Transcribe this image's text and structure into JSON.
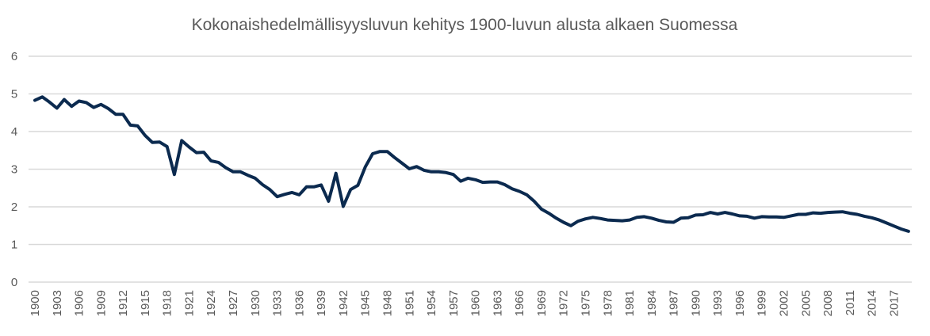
{
  "chart_data": {
    "type": "line",
    "title": "Kokonaishedelmällisyysluvun kehitys 1900-luvun alusta alkaen Suomessa",
    "xlabel": "",
    "ylabel": "",
    "ylim": [
      0,
      6
    ],
    "yticks": [
      "0",
      "1",
      "2",
      "3",
      "4",
      "5",
      "6"
    ],
    "xticks": [
      "1900",
      "1903",
      "1906",
      "1909",
      "1912",
      "1915",
      "1918",
      "1921",
      "1924",
      "1927",
      "1930",
      "1933",
      "1936",
      "1939",
      "1942",
      "1945",
      "1948",
      "1951",
      "1954",
      "1957",
      "1960",
      "1963",
      "1966",
      "1969",
      "1972",
      "1975",
      "1978",
      "1981",
      "1984",
      "1987",
      "1990",
      "1993",
      "1996",
      "1999",
      "2002",
      "2005",
      "2008",
      "2011",
      "2014",
      "2017"
    ],
    "grid": true,
    "legend": "none",
    "line_color": "#0b2a4f",
    "x_start": 1900,
    "values": [
      4.83,
      4.92,
      4.78,
      4.62,
      4.85,
      4.67,
      4.81,
      4.77,
      4.64,
      4.72,
      4.61,
      4.46,
      4.46,
      4.17,
      4.15,
      3.9,
      3.71,
      3.72,
      3.6,
      2.86,
      3.76,
      3.59,
      3.44,
      3.45,
      3.22,
      3.18,
      3.04,
      2.93,
      2.93,
      2.84,
      2.76,
      2.59,
      2.46,
      2.27,
      2.33,
      2.38,
      2.32,
      2.53,
      2.53,
      2.58,
      2.15,
      2.89,
      2.01,
      2.46,
      2.57,
      3.06,
      3.41,
      3.47,
      3.47,
      3.31,
      3.16,
      3.01,
      3.07,
      2.97,
      2.93,
      2.93,
      2.91,
      2.86,
      2.68,
      2.76,
      2.72,
      2.65,
      2.66,
      2.66,
      2.59,
      2.48,
      2.41,
      2.32,
      2.15,
      1.94,
      1.83,
      1.7,
      1.59,
      1.5,
      1.62,
      1.68,
      1.72,
      1.69,
      1.65,
      1.64,
      1.63,
      1.65,
      1.72,
      1.74,
      1.7,
      1.64,
      1.6,
      1.59,
      1.7,
      1.71,
      1.78,
      1.79,
      1.85,
      1.81,
      1.85,
      1.81,
      1.76,
      1.75,
      1.7,
      1.74,
      1.73,
      1.73,
      1.72,
      1.76,
      1.8,
      1.8,
      1.84,
      1.83,
      1.85,
      1.86,
      1.87,
      1.83,
      1.8,
      1.75,
      1.71,
      1.65,
      1.57,
      1.49,
      1.41,
      1.35
    ]
  }
}
